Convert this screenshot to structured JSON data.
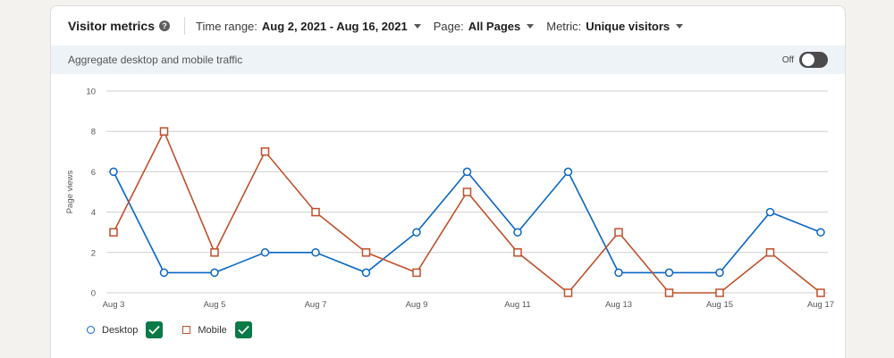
{
  "header": {
    "title": "Visitor metrics",
    "help_icon": "question-circle-icon",
    "filters": [
      {
        "label": "Time range:",
        "value": "Aug 2, 2021 - Aug 16, 2021"
      },
      {
        "label": "Page:",
        "value": "All Pages"
      },
      {
        "label": "Metric:",
        "value": "Unique visitors"
      }
    ]
  },
  "subbar": {
    "text": "Aggregate desktop and mobile traffic",
    "toggle_label": "Off",
    "toggle_on": false
  },
  "legend": [
    {
      "name": "Desktop",
      "marker": "circle",
      "checked": true
    },
    {
      "name": "Mobile",
      "marker": "square",
      "checked": true
    }
  ],
  "colors": {
    "desktop": "#0a66c2",
    "mobile": "#c0502a",
    "check": "#0b7a47",
    "grid": "#cfcfcf"
  },
  "chart_data": {
    "type": "line",
    "ylabel": "Page views",
    "xlabel": "",
    "ylim": [
      0,
      10
    ],
    "yticks": [
      0,
      2,
      4,
      6,
      8,
      10
    ],
    "grid": true,
    "legend_position": "bottom-left",
    "categories": [
      "Aug 3",
      "Aug 4",
      "Aug 5",
      "Aug 6",
      "Aug 7",
      "Aug 8",
      "Aug 9",
      "Aug 10",
      "Aug 11",
      "Aug 12",
      "Aug 13",
      "Aug 14",
      "Aug 15",
      "Aug 16",
      "Aug 17"
    ],
    "xtick_labels": [
      "Aug 3",
      "",
      "Aug 5",
      "",
      "Aug 7",
      "",
      "Aug 9",
      "",
      "Aug 11",
      "",
      "Aug 13",
      "",
      "Aug 15",
      "",
      "Aug 17"
    ],
    "series": [
      {
        "name": "Desktop",
        "marker": "circle",
        "values": [
          6,
          1,
          1,
          2,
          2,
          1,
          3,
          6,
          3,
          6,
          1,
          1,
          1,
          4,
          3
        ]
      },
      {
        "name": "Mobile",
        "marker": "square",
        "values": [
          3,
          8,
          2,
          7,
          4,
          2,
          1,
          5,
          2,
          0,
          3,
          0,
          0,
          2,
          0
        ]
      }
    ]
  }
}
